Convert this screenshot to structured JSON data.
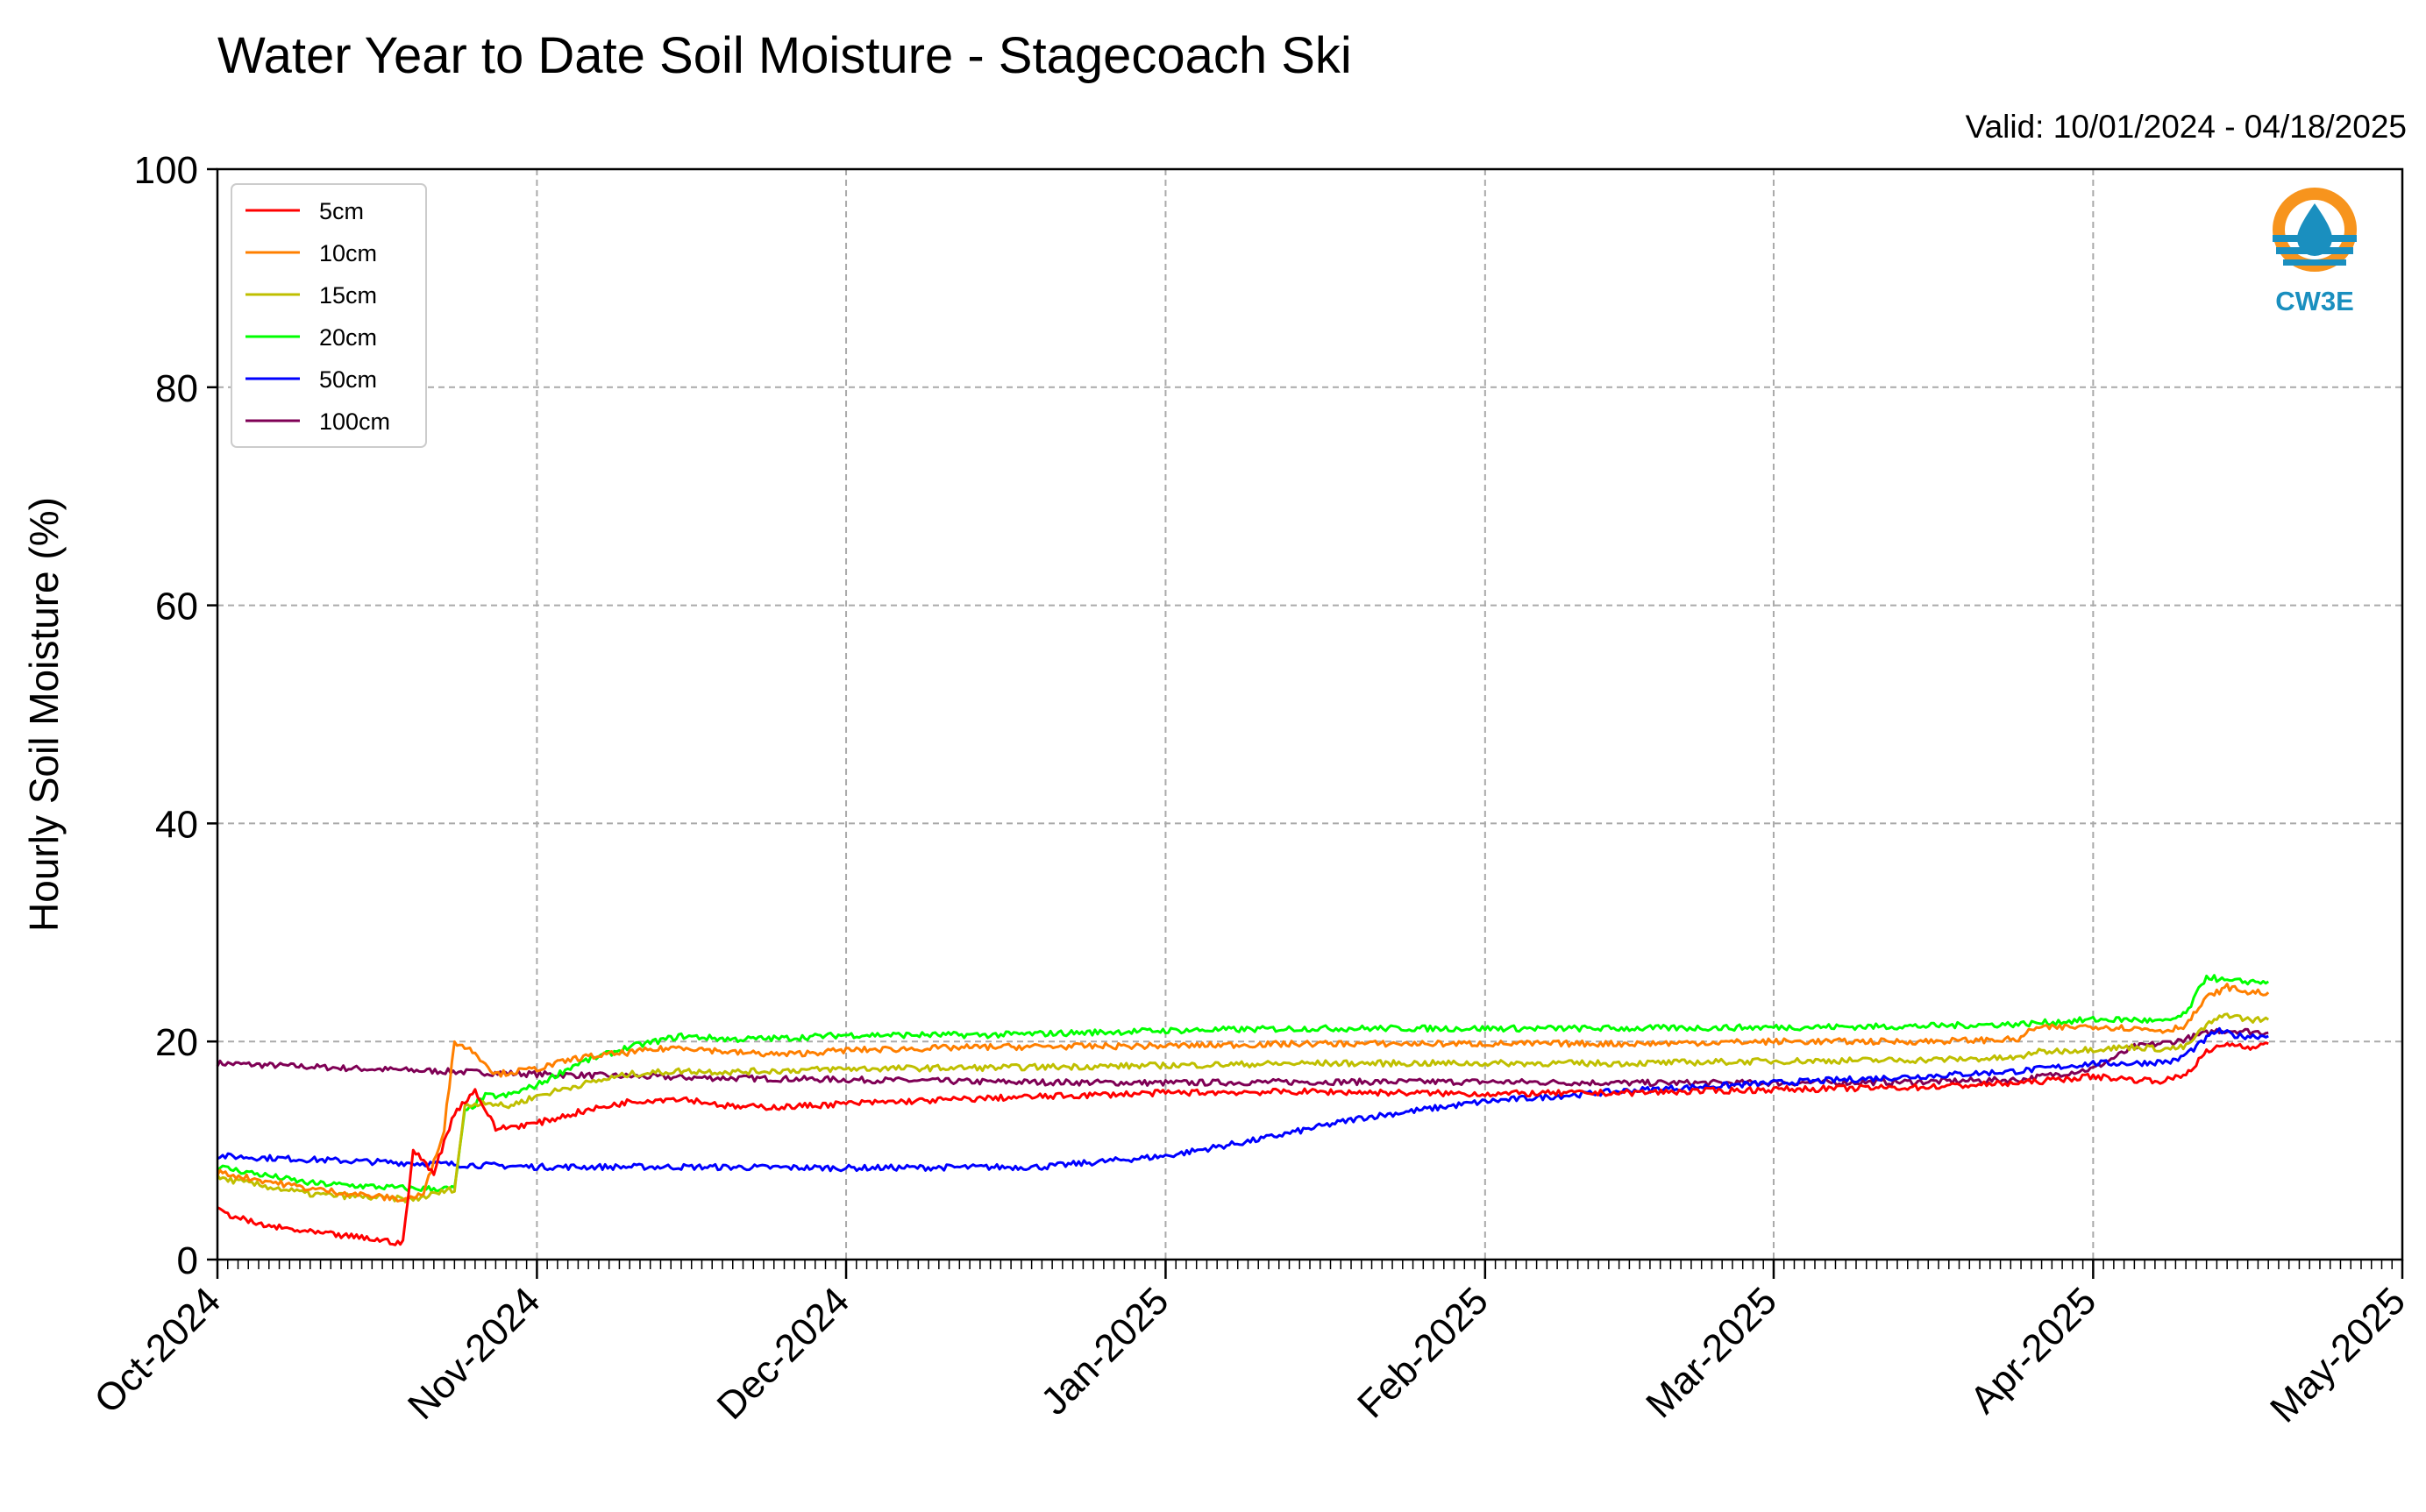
{
  "chart_data": {
    "type": "line",
    "title": "Water Year to Date Soil Moisture - Stagecoach Ski",
    "subtitle": "Valid: 10/01/2024 - 04/18/2025",
    "xlabel": "",
    "ylabel": "Hourly Soil Moisture (%)",
    "xlim": [
      "2024-10-01",
      "2025-05-01"
    ],
    "ylim": [
      0,
      100
    ],
    "yticks": [
      0,
      20,
      40,
      60,
      80,
      100
    ],
    "ytick_labels": [
      "0",
      "20",
      "40",
      "60",
      "80",
      "100"
    ],
    "xticks": [
      "2024-10-01",
      "2024-11-01",
      "2024-12-01",
      "2025-01-01",
      "2025-02-01",
      "2025-03-01",
      "2025-04-01",
      "2025-05-01"
    ],
    "xtick_labels": [
      "Oct-2024",
      "Nov-2024",
      "Dec-2024",
      "Jan-2025",
      "Feb-2025",
      "Mar-2025",
      "Apr-2025",
      "May-2025"
    ],
    "grid": true,
    "legend_position": "top-left",
    "series": [
      {
        "name": "5cm",
        "color": "#ff0000",
        "x": [
          "2024-10-01",
          "2024-10-05",
          "2024-10-10",
          "2024-10-15",
          "2024-10-19",
          "2024-10-20",
          "2024-10-22",
          "2024-10-24",
          "2024-10-26",
          "2024-10-28",
          "2024-11-01",
          "2024-11-05",
          "2024-11-10",
          "2024-11-15",
          "2024-11-20",
          "2024-11-25",
          "2024-12-01",
          "2024-12-15",
          "2025-01-01",
          "2025-01-15",
          "2025-02-01",
          "2025-02-15",
          "2025-03-01",
          "2025-03-15",
          "2025-03-25",
          "2025-04-01",
          "2025-04-05",
          "2025-04-08",
          "2025-04-10",
          "2025-04-12",
          "2025-04-14",
          "2025-04-16",
          "2025-04-18"
        ],
        "y": [
          4.5,
          3.2,
          2.5,
          2.0,
          1.5,
          10.0,
          8.0,
          13.5,
          15.5,
          12.0,
          12.5,
          13.5,
          14.5,
          14.8,
          14.0,
          14.0,
          14.3,
          14.8,
          15.3,
          15.4,
          15.2,
          15.3,
          15.6,
          15.8,
          16.2,
          16.8,
          16.5,
          16.4,
          17.0,
          19.0,
          19.8,
          19.5,
          19.8
        ]
      },
      {
        "name": "10cm",
        "color": "#ff7f00",
        "x": [
          "2024-10-01",
          "2024-10-10",
          "2024-10-19",
          "2024-10-21",
          "2024-10-23",
          "2024-10-24",
          "2024-10-26",
          "2024-10-28",
          "2024-11-01",
          "2024-11-05",
          "2024-11-10",
          "2024-11-15",
          "2024-11-20",
          "2024-11-25",
          "2024-12-01",
          "2024-12-15",
          "2025-01-01",
          "2025-01-15",
          "2025-02-01",
          "2025-02-15",
          "2025-03-01",
          "2025-03-15",
          "2025-03-25",
          "2025-03-26",
          "2025-04-01",
          "2025-04-05",
          "2025-04-08",
          "2025-04-10",
          "2025-04-12",
          "2025-04-14",
          "2025-04-16",
          "2025-04-18"
        ],
        "y": [
          8.0,
          6.5,
          5.5,
          6.0,
          12.0,
          20.0,
          19.0,
          17.0,
          17.5,
          18.5,
          19.0,
          19.5,
          19.0,
          18.8,
          19.2,
          19.5,
          19.6,
          19.8,
          19.8,
          19.8,
          20.0,
          20.0,
          20.2,
          21.2,
          21.4,
          21.2,
          21.0,
          21.5,
          24.0,
          25.0,
          24.5,
          24.5
        ]
      },
      {
        "name": "15cm",
        "color": "#bfbf00",
        "x": [
          "2024-10-01",
          "2024-10-10",
          "2024-10-20",
          "2024-10-24",
          "2024-10-25",
          "2024-10-27",
          "2024-10-29",
          "2024-11-01",
          "2024-11-05",
          "2024-11-10",
          "2024-11-15",
          "2024-11-20",
          "2024-12-01",
          "2024-12-15",
          "2025-01-01",
          "2025-01-15",
          "2025-02-01",
          "2025-02-15",
          "2025-03-01",
          "2025-03-15",
          "2025-03-25",
          "2025-03-26",
          "2025-04-01",
          "2025-04-05",
          "2025-04-08",
          "2025-04-10",
          "2025-04-12",
          "2025-04-14",
          "2025-04-16",
          "2025-04-18"
        ],
        "y": [
          7.5,
          6.0,
          5.5,
          6.5,
          14.0,
          14.5,
          14.0,
          15.0,
          16.0,
          17.0,
          17.3,
          17.2,
          17.5,
          17.6,
          17.8,
          18.0,
          18.0,
          18.0,
          18.2,
          18.3,
          18.5,
          19.0,
          19.3,
          19.5,
          19.3,
          19.5,
          21.5,
          22.5,
          22.0,
          22.0
        ]
      },
      {
        "name": "20cm",
        "color": "#00ff00",
        "x": [
          "2024-10-01",
          "2024-10-10",
          "2024-10-20",
          "2024-10-24",
          "2024-10-25",
          "2024-10-27",
          "2024-10-29",
          "2024-11-01",
          "2024-11-05",
          "2024-11-10",
          "2024-11-15",
          "2024-11-20",
          "2024-11-25",
          "2024-12-01",
          "2024-12-15",
          "2025-01-01",
          "2025-01-15",
          "2025-02-01",
          "2025-02-15",
          "2025-03-01",
          "2025-03-15",
          "2025-03-25",
          "2025-04-01",
          "2025-04-05",
          "2025-04-08",
          "2025-04-10",
          "2025-04-12",
          "2025-04-14",
          "2025-04-16",
          "2025-04-18"
        ],
        "y": [
          8.5,
          7.0,
          6.5,
          6.5,
          13.5,
          15.0,
          15.0,
          16.0,
          18.0,
          19.5,
          20.5,
          20.2,
          20.3,
          20.6,
          20.6,
          21.0,
          21.2,
          21.2,
          21.2,
          21.3,
          21.4,
          21.6,
          22.0,
          22.0,
          21.8,
          22.5,
          26.0,
          25.5,
          25.5,
          25.5
        ]
      },
      {
        "name": "50cm",
        "color": "#0000ff",
        "x": [
          "2024-10-01",
          "2024-10-15",
          "2024-10-25",
          "2024-11-01",
          "2024-11-15",
          "2024-12-01",
          "2024-12-20",
          "2025-01-01",
          "2025-01-10",
          "2025-01-20",
          "2025-02-01",
          "2025-02-15",
          "2025-03-01",
          "2025-03-15",
          "2025-03-25",
          "2025-04-01",
          "2025-04-05",
          "2025-04-09",
          "2025-04-11",
          "2025-04-13",
          "2025-04-15",
          "2025-04-18"
        ],
        "y": [
          9.5,
          9.0,
          8.7,
          8.5,
          8.5,
          8.4,
          8.5,
          9.5,
          11.0,
          13.0,
          14.5,
          15.5,
          16.2,
          16.8,
          17.3,
          18.0,
          18.0,
          18.2,
          19.5,
          21.0,
          20.5,
          20.5
        ]
      },
      {
        "name": "100cm",
        "color": "#7f0055",
        "x": [
          "2024-10-01",
          "2024-10-15",
          "2024-11-01",
          "2024-11-15",
          "2024-12-01",
          "2024-12-15",
          "2025-01-01",
          "2025-01-15",
          "2025-02-01",
          "2025-02-15",
          "2025-03-01",
          "2025-03-15",
          "2025-03-25",
          "2025-04-01",
          "2025-04-05",
          "2025-04-09",
          "2025-04-11",
          "2025-04-13",
          "2025-04-15",
          "2025-04-18"
        ],
        "y": [
          18.0,
          17.5,
          17.0,
          16.7,
          16.5,
          16.3,
          16.2,
          16.3,
          16.3,
          16.2,
          16.2,
          16.3,
          16.5,
          17.5,
          19.5,
          20.0,
          20.5,
          21.0,
          21.0,
          20.8
        ]
      }
    ]
  },
  "logo": {
    "text": "CW3E",
    "ring_color": "#f7941d",
    "accent_color": "#1a8fbf"
  }
}
